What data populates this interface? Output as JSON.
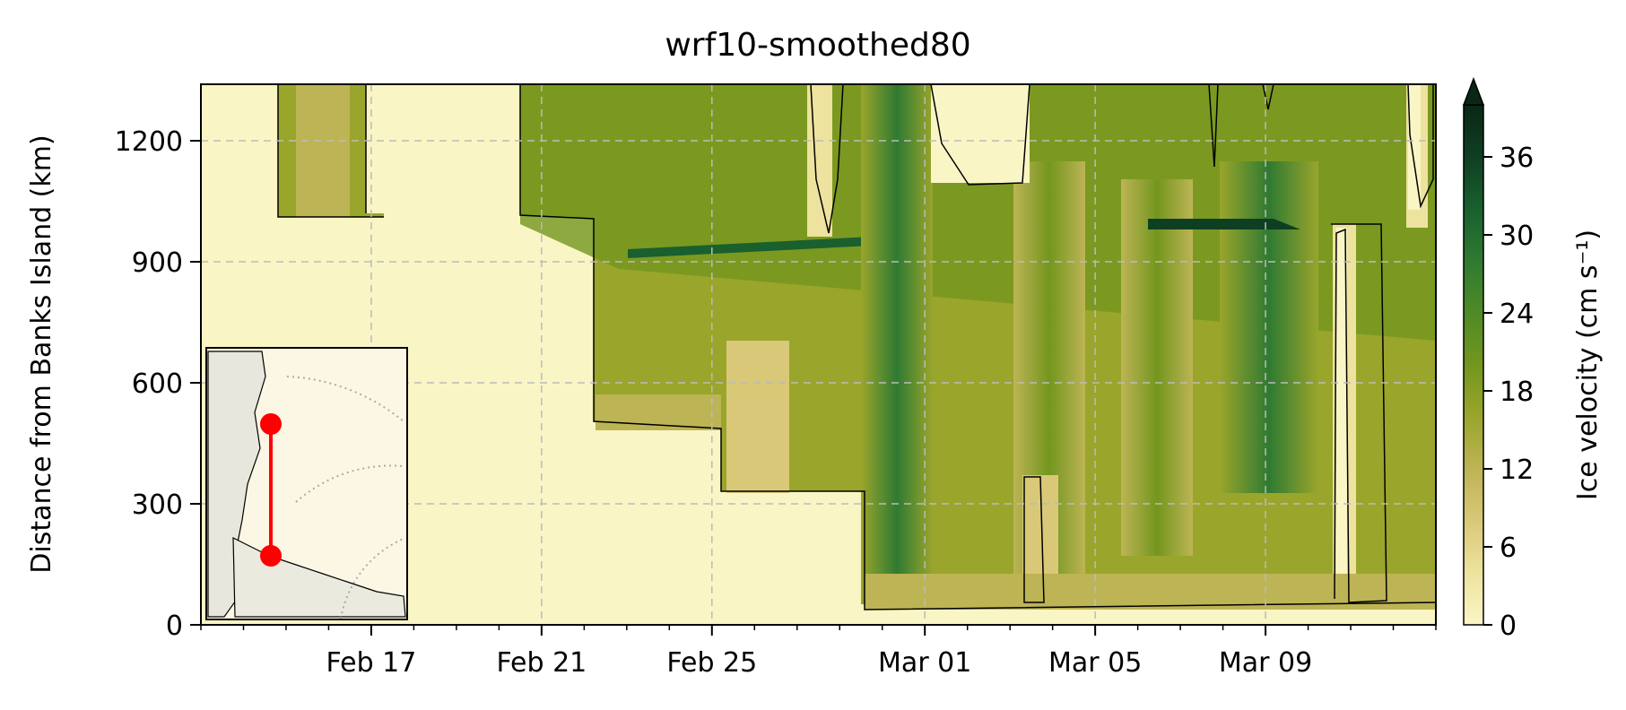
{
  "chart_data": {
    "type": "heatmap",
    "title": "wrf10-smoothed80",
    "ylabel": "Distance from Banks Island (km)",
    "xlabel": "",
    "x_start": "2024-02-13",
    "x_end": "2024-03-13",
    "xticks": [
      {
        "date": "2024-02-17",
        "label": "Feb 17"
      },
      {
        "date": "2024-02-21",
        "label": "Feb 21"
      },
      {
        "date": "2024-02-25",
        "label": "Feb 25"
      },
      {
        "date": "2024-03-01",
        "label": "Mar 01"
      },
      {
        "date": "2024-03-05",
        "label": "Mar 05"
      },
      {
        "date": "2024-03-09",
        "label": "Mar 09"
      }
    ],
    "ylim": [
      0,
      1340
    ],
    "yticks": [
      0,
      300,
      600,
      900,
      1200
    ],
    "grid": true,
    "colorbar": {
      "label": "Ice velocity (cm s⁻¹)",
      "min": 0,
      "max": 40,
      "extend": "max",
      "ticks": [
        0,
        6,
        12,
        18,
        24,
        30,
        36
      ],
      "colors": [
        "#faf5c5",
        "#ede39e",
        "#d9c877",
        "#bdb455",
        "#9aa52c",
        "#73961e",
        "#4f8a26",
        "#2f7a32",
        "#19602e",
        "#0f3f22",
        "#0a2716"
      ]
    },
    "zero_contour_note": "",
    "inset_map": {
      "transect_color": "#ff0000",
      "points": [
        "start",
        "end"
      ]
    }
  }
}
